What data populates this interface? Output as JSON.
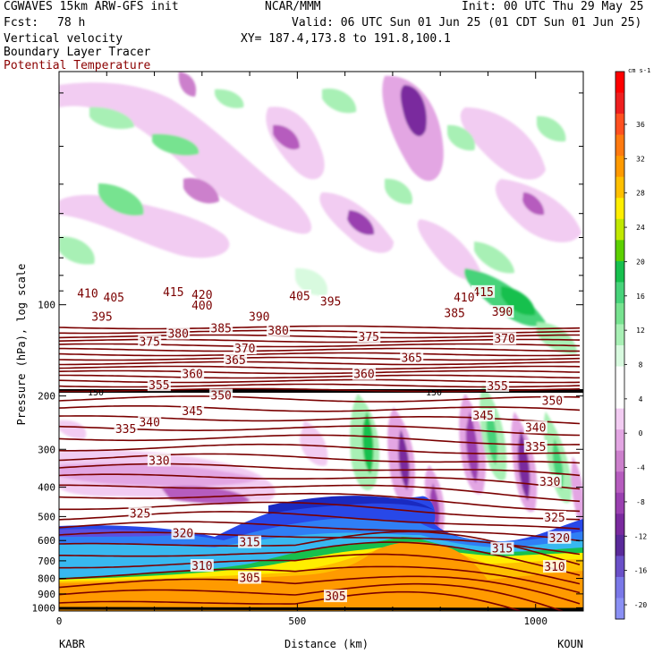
{
  "header": {
    "model": "CGWAVES 15km ARW-GFS init",
    "org": "NCAR/MMM",
    "init": "Init: 00 UTC Thu 29 May 25",
    "fcst_label": "Fcst:",
    "fcst_value": "78 h",
    "valid": "Valid: 06 UTC Sun 01 Jun 25 (01 CDT Sun 01 Jun 25)",
    "xy": "XY= 187.4,173.8 to 191.8,100.1",
    "field1": "Vertical velocity",
    "field2": "Boundary Layer Tracer",
    "field3": "Potential Temperature"
  },
  "colors": {
    "theta_line": "#7a0000",
    "title_red": "#8b0000"
  },
  "chart_data": {
    "type": "heatmap",
    "xlabel": "Distance (km)",
    "ylabel": "Pressure (hPa), log scale",
    "x_ticks": [
      0,
      500,
      1000
    ],
    "xlim": [
      0,
      1100
    ],
    "y_ticks": [
      100,
      200,
      300,
      400,
      500,
      600,
      700,
      800,
      900,
      1000
    ],
    "y_scale": "log",
    "ylim": [
      1025,
      17
    ],
    "left_station": "KABR",
    "right_station": "KOUN",
    "colorbar": {
      "units": "cm s-1",
      "labels": [
        36,
        32,
        28,
        24,
        20,
        16,
        12,
        8,
        4,
        0,
        -4,
        -8,
        -12,
        -16,
        -20
      ],
      "colors": [
        "#ff0000",
        "#ee1f1f",
        "#ff5020",
        "#ff7a10",
        "#ff9a00",
        "#ffc000",
        "#ffee00",
        "#c0e800",
        "#5cd000",
        "#17c04e",
        "#47d37a",
        "#77e390",
        "#a8f0b5",
        "#d8fadf",
        "#ffffff",
        "#ffffff",
        "#f2ccf2",
        "#e3a6e3",
        "#cc80cc",
        "#b65cbe",
        "#9a40b0",
        "#7a2a9e",
        "#5a2a9a",
        "#6a50c8",
        "#7a78e8",
        "#8a90f4"
      ]
    },
    "tropopause_label": "150",
    "theta_contours": [
      {
        "label": "410",
        "at": [
          [
            60,
            92
          ]
        ]
      },
      {
        "label": "405",
        "at": [
          [
            115,
            95
          ],
          [
            505,
            94
          ]
        ]
      },
      {
        "label": "420",
        "at": [
          [
            300,
            93
          ]
        ]
      },
      {
        "label": "415",
        "at": [
          [
            240,
            91
          ],
          [
            890,
            91
          ]
        ]
      },
      {
        "label": "410",
        "at": [
          [
            850,
            95
          ]
        ]
      },
      {
        "label": "400",
        "at": [
          [
            300,
            101
          ]
        ]
      },
      {
        "label": "395",
        "at": [
          [
            90,
            110
          ],
          [
            570,
            98
          ]
        ]
      },
      {
        "label": "390",
        "at": [
          [
            420,
            110
          ],
          [
            930,
            106
          ]
        ]
      },
      {
        "label": "385",
        "at": [
          [
            340,
            120
          ],
          [
            830,
            107
          ]
        ]
      },
      {
        "label": "380",
        "at": [
          [
            250,
            125
          ],
          [
            460,
            122
          ]
        ]
      },
      {
        "label": "375",
        "at": [
          [
            190,
            133
          ],
          [
            650,
            128
          ]
        ]
      },
      {
        "label": "370",
        "at": [
          [
            390,
            140
          ],
          [
            935,
            130
          ]
        ]
      },
      {
        "label": "365",
        "at": [
          [
            370,
            153
          ],
          [
            740,
            150
          ]
        ]
      },
      {
        "label": "360",
        "at": [
          [
            280,
            170
          ],
          [
            640,
            170
          ]
        ]
      },
      {
        "label": "355",
        "at": [
          [
            210,
            185
          ],
          [
            920,
            186
          ]
        ]
      },
      {
        "label": "350",
        "at": [
          [
            340,
            200
          ],
          [
            1035,
            208
          ]
        ]
      },
      {
        "label": "345",
        "at": [
          [
            280,
            225
          ],
          [
            890,
            233
          ]
        ]
      },
      {
        "label": "340",
        "at": [
          [
            190,
            245
          ],
          [
            1000,
            255
          ]
        ]
      },
      {
        "label": "335",
        "at": [
          [
            140,
            258
          ],
          [
            1000,
            295
          ]
        ]
      },
      {
        "label": "330",
        "at": [
          [
            210,
            328
          ],
          [
            1030,
            385
          ]
        ]
      },
      {
        "label": "325",
        "at": [
          [
            170,
            490
          ],
          [
            1040,
            505
          ]
        ]
      },
      {
        "label": "320",
        "at": [
          [
            260,
            570
          ],
          [
            1050,
            590
          ]
        ]
      },
      {
        "label": "315",
        "at": [
          [
            400,
            610
          ],
          [
            930,
            640
          ]
        ]
      },
      {
        "label": "310",
        "at": [
          [
            300,
            730
          ],
          [
            1040,
            735
          ]
        ]
      },
      {
        "label": "305",
        "at": [
          [
            400,
            800
          ],
          [
            580,
            920
          ]
        ]
      }
    ]
  }
}
